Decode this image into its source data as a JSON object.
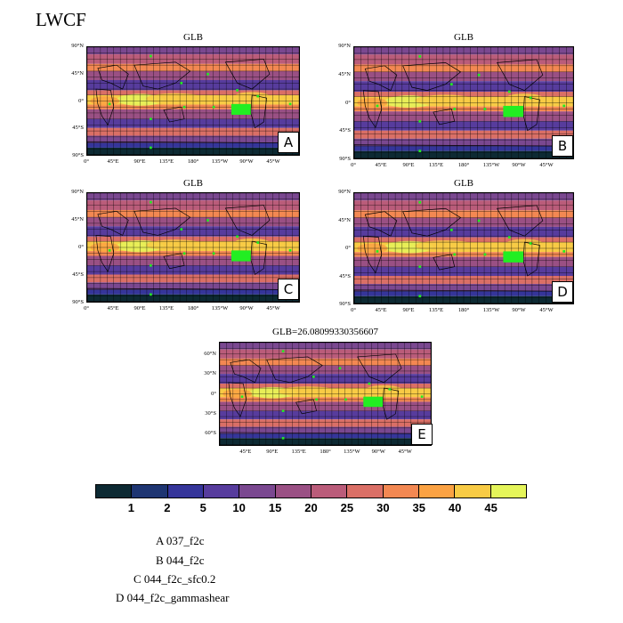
{
  "title": "LWCF",
  "panels": [
    {
      "id": "A",
      "title": "GLB",
      "letter": "A"
    },
    {
      "id": "B",
      "title": "GLB",
      "letter": "B"
    },
    {
      "id": "C",
      "title": "GLB",
      "letter": "C"
    },
    {
      "id": "D",
      "title": "GLB",
      "letter": "D"
    },
    {
      "id": "E",
      "title": "GLB=26.08099330356607",
      "letter": "E"
    }
  ],
  "lat_labels_global": [
    "90°N",
    "45°N",
    "0°",
    "45°S",
    "90°S"
  ],
  "lon_labels_global": [
    "0°",
    "45°E",
    "90°E",
    "135°E",
    "180°",
    "135°W",
    "90°W",
    "45°W"
  ],
  "lat_labels_e": [
    "60°N",
    "30°N",
    "0°",
    "30°S",
    "60°S"
  ],
  "lon_labels_e": [
    "45°E",
    "90°E",
    "135°E",
    "180°",
    "135°W",
    "90°W",
    "45°W"
  ],
  "colorbar": {
    "colors": [
      "#0d2a33",
      "#1e3572",
      "#35359a",
      "#573c9d",
      "#7a4890",
      "#9a5084",
      "#ba5c7a",
      "#da6f66",
      "#f38852",
      "#fba243",
      "#f8cb45",
      "#e5f55a"
    ],
    "labels": [
      "1",
      "2",
      "5",
      "10",
      "15",
      "20",
      "25",
      "30",
      "35",
      "40",
      "45"
    ]
  },
  "legend": [
    {
      "letter": "A",
      "case": "037_f2c"
    },
    {
      "letter": "B",
      "case": "044_f2c"
    },
    {
      "letter": "C",
      "case": "044_f2c_sfc0.2"
    },
    {
      "letter": "D",
      "case": "044_f2c_gammashear"
    }
  ]
}
